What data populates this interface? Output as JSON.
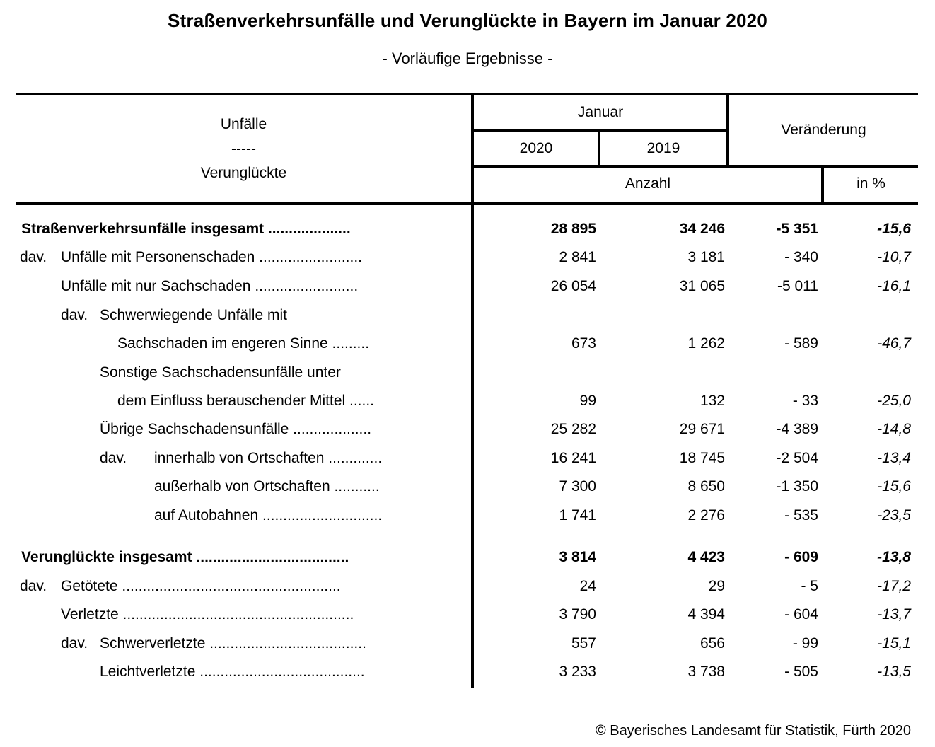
{
  "title": "Straßenverkehrsunfälle und Verunglückte in Bayern im Januar 2020",
  "subtitle": "- Vorläufige Ergebnisse -",
  "table": {
    "header": {
      "row_label_line1": "Unfälle",
      "row_label_line2": "-----",
      "row_label_line3": "Verunglückte",
      "month_group": "Januar",
      "year_2020": "2020",
      "year_2019": "2019",
      "change_label": "Veränderung",
      "count_label": "Anzahl",
      "percent_label": "in %"
    },
    "rows": [
      {
        "prefix": "",
        "label": "Straßenverkehrsunfälle insgesamt ....................",
        "bold": true,
        "v2020": "28 895",
        "v2019": "34 246",
        "diff": "-5 351",
        "pct": "-15,6"
      },
      {
        "prefix": "dav.",
        "label": "Unfälle mit Personenschaden .........................",
        "bold": false,
        "v2020": "2 841",
        "v2019": "3 181",
        "diff": "- 340",
        "pct": "-10,7"
      },
      {
        "prefix": "",
        "label": "Unfälle mit nur Sachschaden .........................",
        "bold": false,
        "v2020": "26 054",
        "v2019": "31 065",
        "diff": "-5 011",
        "pct": "-16,1"
      },
      {
        "prefix": "dav.",
        "label": "Schwerwiegende Unfälle mit",
        "bold": false,
        "v2020": null,
        "v2019": null,
        "diff": null,
        "pct": null
      },
      {
        "prefix": "",
        "label": "Sachschaden im engeren Sinne .........",
        "bold": false,
        "v2020": "673",
        "v2019": "1 262",
        "diff": "- 589",
        "pct": "-46,7"
      },
      {
        "prefix": "",
        "label": "Sonstige Sachschadensunfälle unter",
        "bold": false,
        "v2020": null,
        "v2019": null,
        "diff": null,
        "pct": null
      },
      {
        "prefix": "",
        "label": "dem Einfluss berauschender Mittel ......",
        "bold": false,
        "v2020": "99",
        "v2019": "132",
        "diff": "- 33",
        "pct": "-25,0"
      },
      {
        "prefix": "",
        "label": "Übrige Sachschadensunfälle ...................",
        "bold": false,
        "v2020": "25 282",
        "v2019": "29 671",
        "diff": "-4 389",
        "pct": "-14,8"
      },
      {
        "prefix": "dav.",
        "label": "innerhalb von Ortschaften .............",
        "bold": false,
        "v2020": "16 241",
        "v2019": "18 745",
        "diff": "-2 504",
        "pct": "-13,4"
      },
      {
        "prefix": "",
        "label": "außerhalb von Ortschaften ...........",
        "bold": false,
        "v2020": "7 300",
        "v2019": "8 650",
        "diff": "-1 350",
        "pct": "-15,6"
      },
      {
        "prefix": "",
        "label": "auf Autobahnen .............................",
        "bold": false,
        "v2020": "1 741",
        "v2019": "2 276",
        "diff": "- 535",
        "pct": "-23,5"
      },
      {
        "prefix": "",
        "label": "Verunglückte insgesamt .....................................",
        "bold": true,
        "v2020": "3 814",
        "v2019": "4 423",
        "diff": "- 609",
        "pct": "-13,8"
      },
      {
        "prefix": "dav.",
        "label": "Getötete .....................................................",
        "bold": false,
        "v2020": "24",
        "v2019": "29",
        "diff": "- 5",
        "pct": "-17,2"
      },
      {
        "prefix": "",
        "label": "Verletzte ........................................................",
        "bold": false,
        "v2020": "3 790",
        "v2019": "4 394",
        "diff": "- 604",
        "pct": "-13,7"
      },
      {
        "prefix": "dav.",
        "label": "Schwerverletzte ......................................",
        "bold": false,
        "v2020": "557",
        "v2019": "656",
        "diff": "- 99",
        "pct": "-15,1"
      },
      {
        "prefix": "",
        "label": "Leichtverletzte ........................................",
        "bold": false,
        "v2020": "3 233",
        "v2019": "3 738",
        "diff": "- 505",
        "pct": "-13,5"
      }
    ]
  },
  "footer": "© Bayerisches Landesamt für Statistik, Fürth 2020",
  "colors": {
    "text": "#000000",
    "background": "#ffffff",
    "rule": "#000000"
  }
}
